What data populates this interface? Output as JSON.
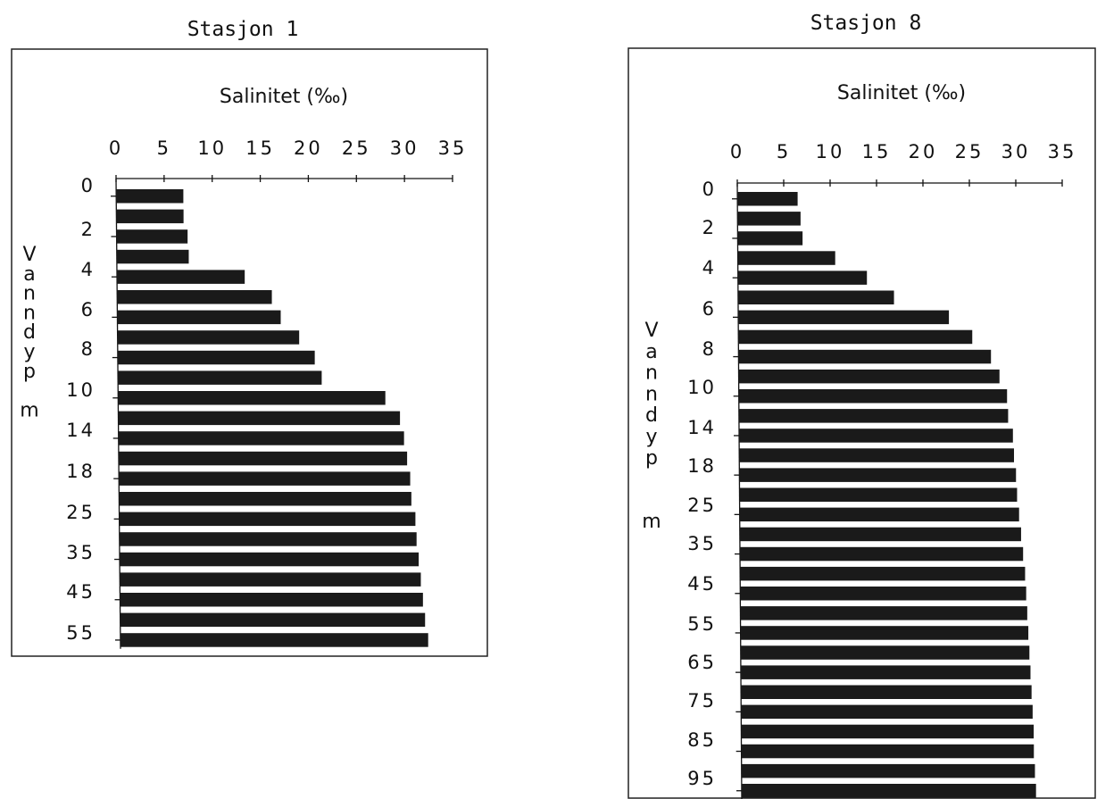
{
  "chart_data": [
    {
      "type": "bar",
      "orientation": "horizontal",
      "title": "Stasjon 1",
      "xlabel": "Salinitet (‰)",
      "ylabel": "Vanndyp m",
      "xlim": [
        0,
        35
      ],
      "xticks": [
        0,
        5,
        10,
        15,
        20,
        25,
        30,
        35
      ],
      "ytick_labels": [
        "0",
        "2",
        "4",
        "6",
        "8",
        "10",
        "14",
        "18",
        "25",
        "35",
        "45",
        "55"
      ],
      "values": [
        7.0,
        7.0,
        7.4,
        7.5,
        13.3,
        16.1,
        17.0,
        18.9,
        20.5,
        21.2,
        27.8,
        29.3,
        29.7,
        30.0,
        30.3,
        30.4,
        30.8,
        30.9,
        31.1,
        31.3,
        31.5,
        31.7,
        32.0
      ]
    },
    {
      "type": "bar",
      "orientation": "horizontal",
      "title": "Stasjon 8",
      "xlabel": "Salinitet (‰)",
      "ylabel": "Vanndyp m",
      "xlim": [
        0,
        35
      ],
      "xticks": [
        0,
        5,
        10,
        15,
        20,
        25,
        30,
        35
      ],
      "ytick_labels": [
        "0",
        "2",
        "4",
        "6",
        "8",
        "10",
        "14",
        "18",
        "25",
        "35",
        "45",
        "55",
        "65",
        "75",
        "85",
        "95"
      ],
      "values": [
        6.5,
        6.8,
        7.0,
        10.5,
        13.9,
        16.8,
        22.7,
        25.2,
        27.2,
        28.1,
        28.9,
        29.0,
        29.5,
        29.6,
        29.8,
        29.9,
        30.1,
        30.3,
        30.5,
        30.7,
        30.8,
        30.9,
        31.0,
        31.1,
        31.2,
        31.3,
        31.4,
        31.5,
        31.5,
        31.6,
        31.7
      ]
    }
  ]
}
